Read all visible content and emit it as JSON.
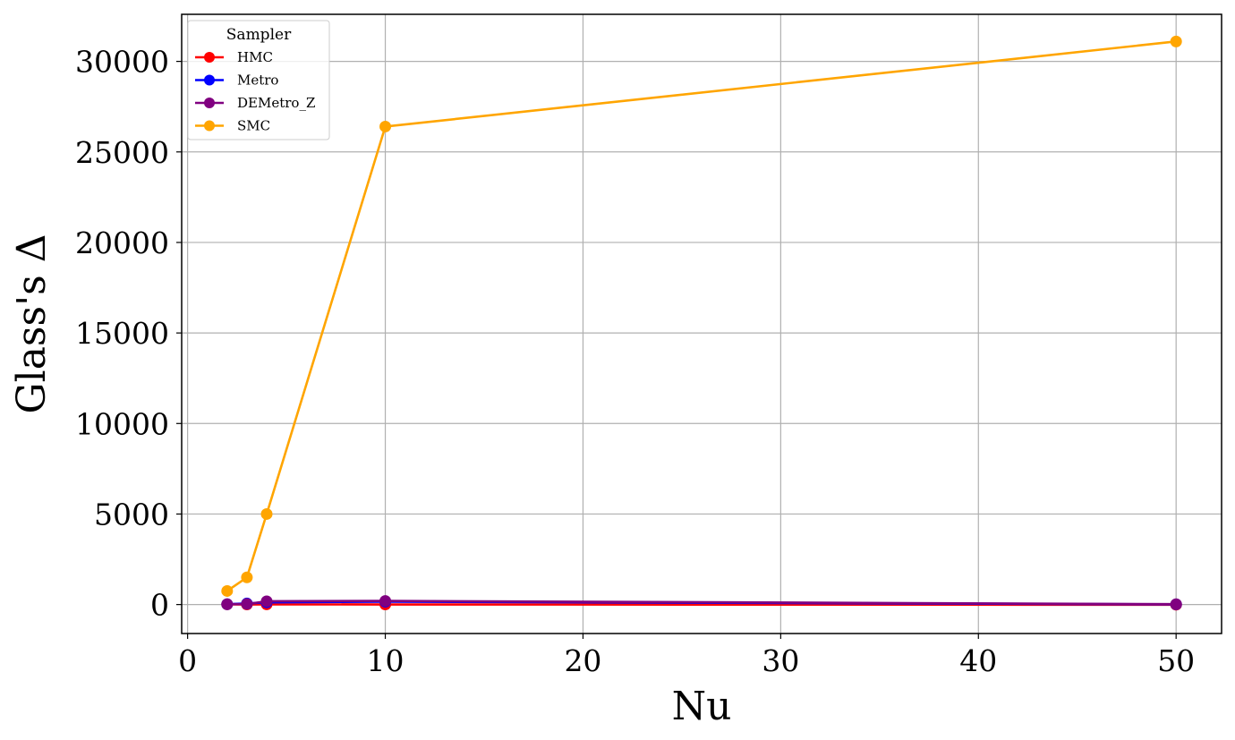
{
  "chart_data": {
    "type": "line",
    "title": "",
    "xlabel": "Nu",
    "ylabel": "Glass's Δ",
    "x": [
      2,
      3,
      4,
      10,
      50
    ],
    "xlim": [
      -0.3,
      52.3
    ],
    "ylim": [
      -1600,
      32600
    ],
    "xticks": [
      0,
      10,
      20,
      30,
      40,
      50
    ],
    "yticks": [
      0,
      5000,
      10000,
      15000,
      20000,
      25000,
      30000
    ],
    "grid": true,
    "legend": {
      "title": "Sampler",
      "position": "top-left"
    },
    "series": [
      {
        "name": "HMC",
        "color": "#ff0000",
        "values": [
          10,
          5,
          10,
          5,
          -10
        ]
      },
      {
        "name": "Metro",
        "color": "#0000ff",
        "values": [
          20,
          60,
          120,
          160,
          10
        ]
      },
      {
        "name": "DEMetro_Z",
        "color": "#800080",
        "values": [
          20,
          30,
          180,
          200,
          20
        ]
      },
      {
        "name": "SMC",
        "color": "#ffa500",
        "values": [
          750,
          1500,
          5000,
          26400,
          31100
        ]
      }
    ]
  }
}
